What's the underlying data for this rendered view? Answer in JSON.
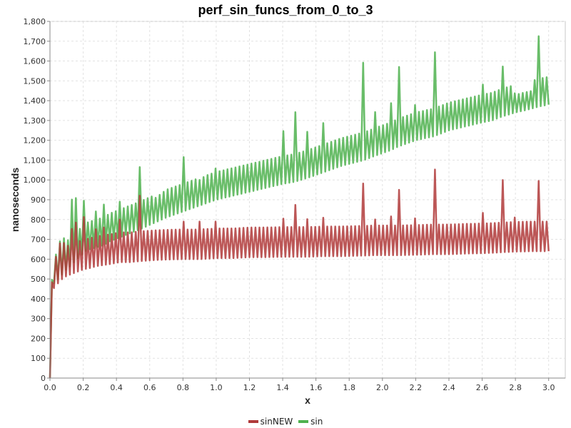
{
  "chart_data": {
    "type": "line",
    "title": "perf_sin_funcs_from_0_to_3",
    "xlabel": "x",
    "ylabel": "nanoseconds",
    "xlim": [
      0,
      3.1
    ],
    "ylim": [
      0,
      1800
    ],
    "xticks": [
      "0.0",
      "0.2",
      "0.4",
      "0.6",
      "0.8",
      "1.0",
      "1.2",
      "1.4",
      "1.6",
      "1.8",
      "2.0",
      "2.2",
      "2.4",
      "2.6",
      "2.8",
      "3.0"
    ],
    "yticks": [
      "0",
      "100",
      "200",
      "300",
      "400",
      "500",
      "600",
      "700",
      "800",
      "900",
      "1,000",
      "1,100",
      "1,200",
      "1,300",
      "1,400",
      "1,500",
      "1,600",
      "1,700",
      "1,800"
    ],
    "grid": true,
    "legend": "bottom-center",
    "series": [
      {
        "name": "sinNEW",
        "color": "#b03a3a",
        "x": [
          0.0,
          0.01,
          0.02,
          0.04,
          0.06,
          0.08,
          0.1,
          0.13,
          0.16,
          0.19,
          0.21,
          0.24,
          0.28,
          0.32,
          0.36,
          0.42,
          0.48,
          0.54,
          0.62,
          0.7,
          0.8,
          0.9,
          1.0,
          1.1,
          1.2,
          1.3,
          1.4,
          1.47,
          1.55,
          1.65,
          1.75,
          1.89,
          1.95,
          2.05,
          2.1,
          2.2,
          2.31,
          2.4,
          2.5,
          2.6,
          2.66,
          2.72,
          2.8,
          2.9,
          2.94,
          3.0
        ],
        "lower": [
          0,
          440,
          450,
          470,
          490,
          505,
          515,
          525,
          535,
          545,
          550,
          555,
          565,
          570,
          575,
          585,
          585,
          590,
          595,
          598,
          600,
          600,
          605,
          605,
          610,
          610,
          612,
          612,
          612,
          615,
          615,
          618,
          620,
          620,
          620,
          622,
          625,
          625,
          628,
          630,
          632,
          635,
          638,
          640,
          640,
          640
        ],
        "upper": [
          0,
          480,
          500,
          640,
          680,
          680,
          690,
          750,
          790,
          890,
          780,
          760,
          750,
          740,
          940,
          800,
          760,
          920,
          780,
          810,
          790,
          790,
          790,
          790,
          790,
          790,
          800,
          880,
          800,
          810,
          800,
          990,
          800,
          810,
          950,
          800,
          1070,
          810,
          820,
          820,
          1025,
          1010,
          800,
          800,
          995,
          815
        ]
      },
      {
        "name": "sin",
        "color": "#4fb24f",
        "x": [
          0.0,
          0.01,
          0.02,
          0.04,
          0.06,
          0.08,
          0.1,
          0.13,
          0.16,
          0.19,
          0.21,
          0.24,
          0.28,
          0.32,
          0.36,
          0.42,
          0.48,
          0.54,
          0.62,
          0.7,
          0.8,
          0.9,
          1.0,
          1.1,
          1.2,
          1.3,
          1.4,
          1.47,
          1.55,
          1.65,
          1.75,
          1.89,
          1.95,
          2.05,
          2.1,
          2.2,
          2.31,
          2.4,
          2.5,
          2.6,
          2.66,
          2.72,
          2.8,
          2.9,
          2.94,
          3.0
        ],
        "lower": [
          0,
          470,
          475,
          490,
          510,
          530,
          550,
          570,
          600,
          620,
          640,
          650,
          660,
          670,
          690,
          710,
          730,
          750,
          780,
          810,
          840,
          870,
          900,
          920,
          940,
          960,
          980,
          990,
          1010,
          1040,
          1070,
          1100,
          1120,
          1150,
          1170,
          1200,
          1220,
          1250,
          1270,
          1290,
          1300,
          1320,
          1340,
          1360,
          1370,
          1380
        ],
        "upper": [
          0,
          490,
          520,
          650,
          690,
          700,
          730,
          900,
          910,
          930,
          880,
          850,
          840,
          860,
          1020,
          890,
          870,
          1065,
          900,
          950,
          1120,
          1000,
          1060,
          1110,
          1130,
          1160,
          1240,
          1350,
          1240,
          1290,
          1400,
          1600,
          1340,
          1380,
          1570,
          1370,
          1660,
          1420,
          1480,
          1470,
          1640,
          1580,
          1430,
          1450,
          1725,
          1530
        ]
      }
    ]
  }
}
